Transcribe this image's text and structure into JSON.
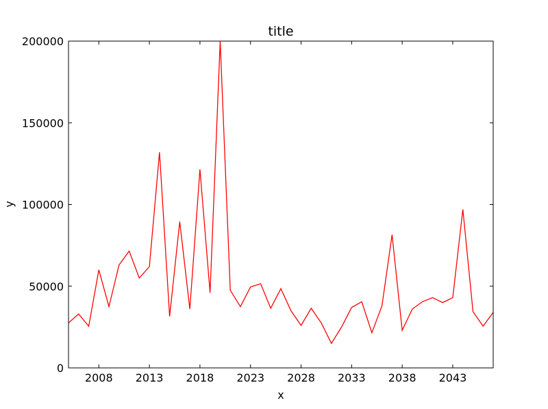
{
  "chart_data": {
    "type": "line",
    "title": "title",
    "xlabel": "x",
    "ylabel": "y",
    "xlim": [
      2005,
      2047
    ],
    "ylim": [
      0,
      200000
    ],
    "grid": false,
    "x_ticks": [
      2008,
      2013,
      2018,
      2023,
      2028,
      2033,
      2038,
      2043
    ],
    "y_ticks": [
      0,
      50000,
      100000,
      150000,
      200000
    ],
    "series": [
      {
        "color": "#ff0000",
        "x": [
          2005,
          2006,
          2007,
          2008,
          2009,
          2010,
          2011,
          2012,
          2013,
          2014,
          2015,
          2016,
          2017,
          2018,
          2019,
          2020,
          2021,
          2022,
          2023,
          2024,
          2025,
          2026,
          2027,
          2028,
          2029,
          2030,
          2031,
          2032,
          2033,
          2034,
          2035,
          2036,
          2037,
          2038,
          2039,
          2040,
          2041,
          2042,
          2043,
          2044,
          2045,
          2046,
          2047
        ],
        "values": [
          27500,
          33000,
          25500,
          60000,
          37500,
          63000,
          71500,
          55000,
          62000,
          132000,
          31500,
          89500,
          36000,
          121500,
          46000,
          200000,
          47500,
          37500,
          49500,
          51500,
          36500,
          48500,
          35000,
          26000,
          36500,
          27500,
          15000,
          25000,
          37000,
          40500,
          21500,
          38000,
          81500,
          23000,
          36000,
          40500,
          43000,
          40000,
          43000,
          97000,
          34500,
          25500,
          34000
        ]
      }
    ]
  }
}
